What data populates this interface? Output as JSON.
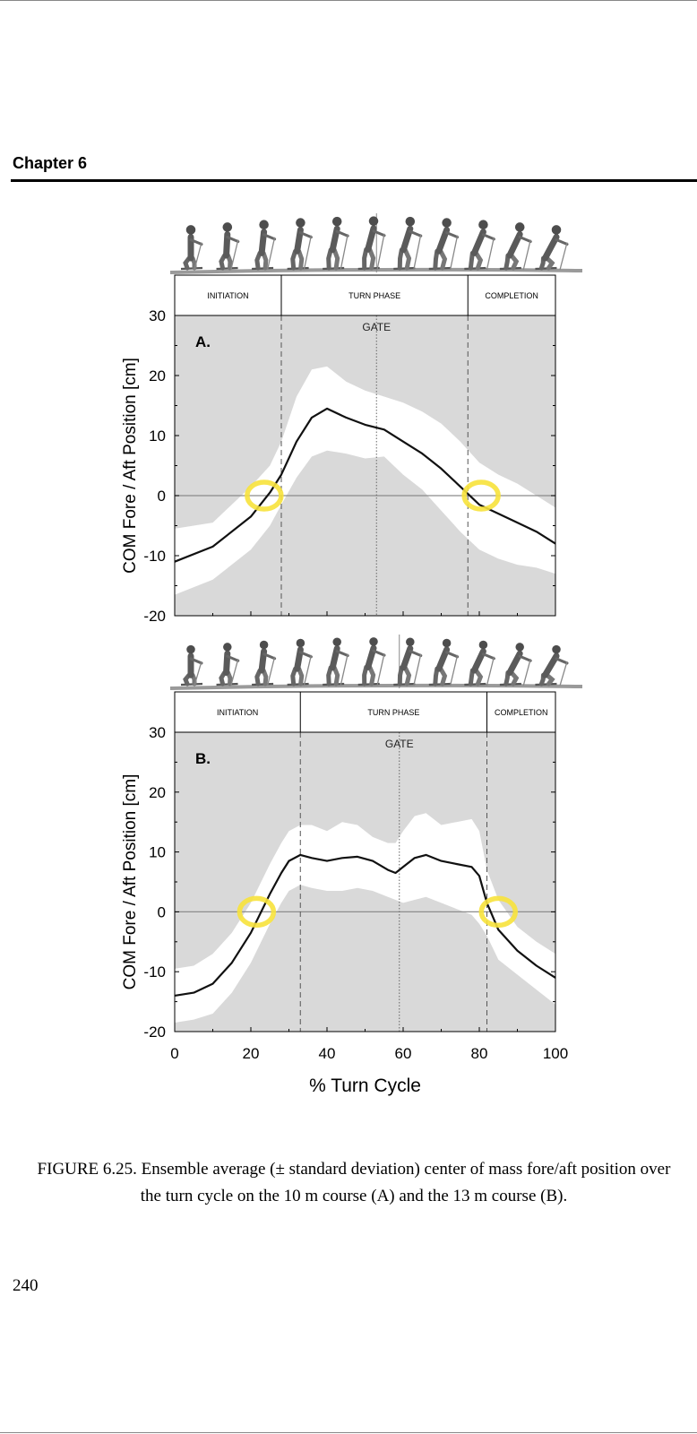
{
  "header": {
    "chapter": "Chapter 6"
  },
  "caption": "FIGURE 6.25.  Ensemble average (± standard deviation) center of mass fore/aft position over the turn cycle on the 10 m course (A) and the 13 m course (B).",
  "page_number": "240",
  "colors": {
    "band_bg": "#d9d9d9",
    "sd_band": "#ffffff",
    "mean_line": "#111111",
    "highlight": "#f7e23b"
  },
  "icons": [
    "skier-sequence-illustration",
    "highlight-circle"
  ],
  "chart_data": [
    {
      "type": "line",
      "panel_label": "A.",
      "gate_label": "GATE",
      "phases": [
        {
          "label": "INITIATION",
          "start": 0,
          "end": 28
        },
        {
          "label": "TURN PHASE",
          "start": 28,
          "end": 77
        },
        {
          "label": "COMPLETION",
          "start": 77,
          "end": 100
        }
      ],
      "phase_boundaries": [
        28,
        77
      ],
      "gate_x": 53,
      "ylabel": "COM Fore / Aft Position [cm]",
      "ylim": [
        -20,
        30
      ],
      "yticks": [
        -20,
        -10,
        0,
        10,
        20,
        30
      ],
      "xlim": [
        0,
        100
      ],
      "xticks": [
        0,
        20,
        40,
        60,
        80,
        100
      ],
      "xticklabels": [],
      "xlabel": "",
      "x": [
        0,
        10,
        20,
        25,
        28,
        32,
        36,
        40,
        45,
        50,
        55,
        60,
        65,
        70,
        75,
        80,
        85,
        90,
        95,
        100
      ],
      "mean": [
        -11,
        -8.5,
        -3.5,
        0.5,
        3.5,
        9,
        13,
        14.5,
        13,
        11.8,
        11,
        9,
        7,
        4.5,
        1.5,
        -1.5,
        -3,
        -4.5,
        -6,
        -8
      ],
      "sd_upper": [
        -5.5,
        -4.5,
        1.5,
        5,
        9,
        16.5,
        21,
        21.5,
        19,
        17.5,
        16.5,
        15.5,
        14,
        12,
        9,
        5.5,
        3.5,
        2,
        0,
        -2
      ],
      "sd_lower": [
        -16.5,
        -14,
        -9,
        -5,
        -1.5,
        3,
        6.5,
        7.5,
        7,
        6.2,
        6.5,
        3.5,
        1,
        -2.5,
        -6,
        -9,
        -10.5,
        -11.5,
        -12,
        -13
      ],
      "highlights": [
        [
          23.5,
          0
        ],
        [
          80.5,
          0
        ]
      ]
    },
    {
      "type": "line",
      "panel_label": "B.",
      "gate_label": "GATE",
      "phases": [
        {
          "label": "INITIATION",
          "start": 0,
          "end": 33
        },
        {
          "label": "TURN PHASE",
          "start": 33,
          "end": 82
        },
        {
          "label": "COMPLETION",
          "start": 82,
          "end": 100
        }
      ],
      "phase_boundaries": [
        33,
        82
      ],
      "gate_x": 59,
      "ylabel": "COM Fore / Aft Position [cm]",
      "ylim": [
        -20,
        30
      ],
      "yticks": [
        -20,
        -10,
        0,
        10,
        20,
        30
      ],
      "xlim": [
        0,
        100
      ],
      "xticks": [
        0,
        20,
        40,
        60,
        80,
        100
      ],
      "xticklabels": [
        "0",
        "20",
        "40",
        "60",
        "80",
        "100"
      ],
      "xlabel": "% Turn Cycle",
      "x": [
        0,
        5,
        10,
        15,
        20,
        25,
        28,
        30,
        33,
        36,
        40,
        44,
        48,
        52,
        56,
        58,
        60,
        63,
        66,
        70,
        74,
        78,
        80,
        82,
        85,
        90,
        95,
        100
      ],
      "mean": [
        -14,
        -13.5,
        -12,
        -8.5,
        -3.5,
        3,
        6.5,
        8.5,
        9.5,
        9,
        8.5,
        9,
        9.2,
        8.5,
        7,
        6.5,
        7.5,
        9,
        9.5,
        8.5,
        8,
        7.5,
        6,
        1.5,
        -3,
        -6.5,
        -9,
        -11
      ],
      "sd_upper": [
        -9.5,
        -9,
        -7,
        -3.5,
        1.5,
        8,
        11.5,
        13.5,
        14.5,
        14.5,
        13.5,
        15,
        14.5,
        12.5,
        11.5,
        11.5,
        13.5,
        16,
        16.5,
        14.5,
        15,
        15.5,
        13.5,
        7,
        2,
        -2.5,
        -5,
        -7
      ],
      "sd_lower": [
        -18.5,
        -18,
        -17,
        -13.5,
        -8.5,
        -2,
        1.5,
        3.5,
        4.5,
        4,
        3.5,
        3.5,
        4,
        3.5,
        2.5,
        2,
        1.5,
        2,
        2.5,
        1.5,
        0.5,
        -0.5,
        -2,
        -4,
        -8,
        -10.5,
        -13,
        -15.5
      ],
      "highlights": [
        [
          21.5,
          0
        ],
        [
          85,
          0
        ]
      ]
    }
  ]
}
